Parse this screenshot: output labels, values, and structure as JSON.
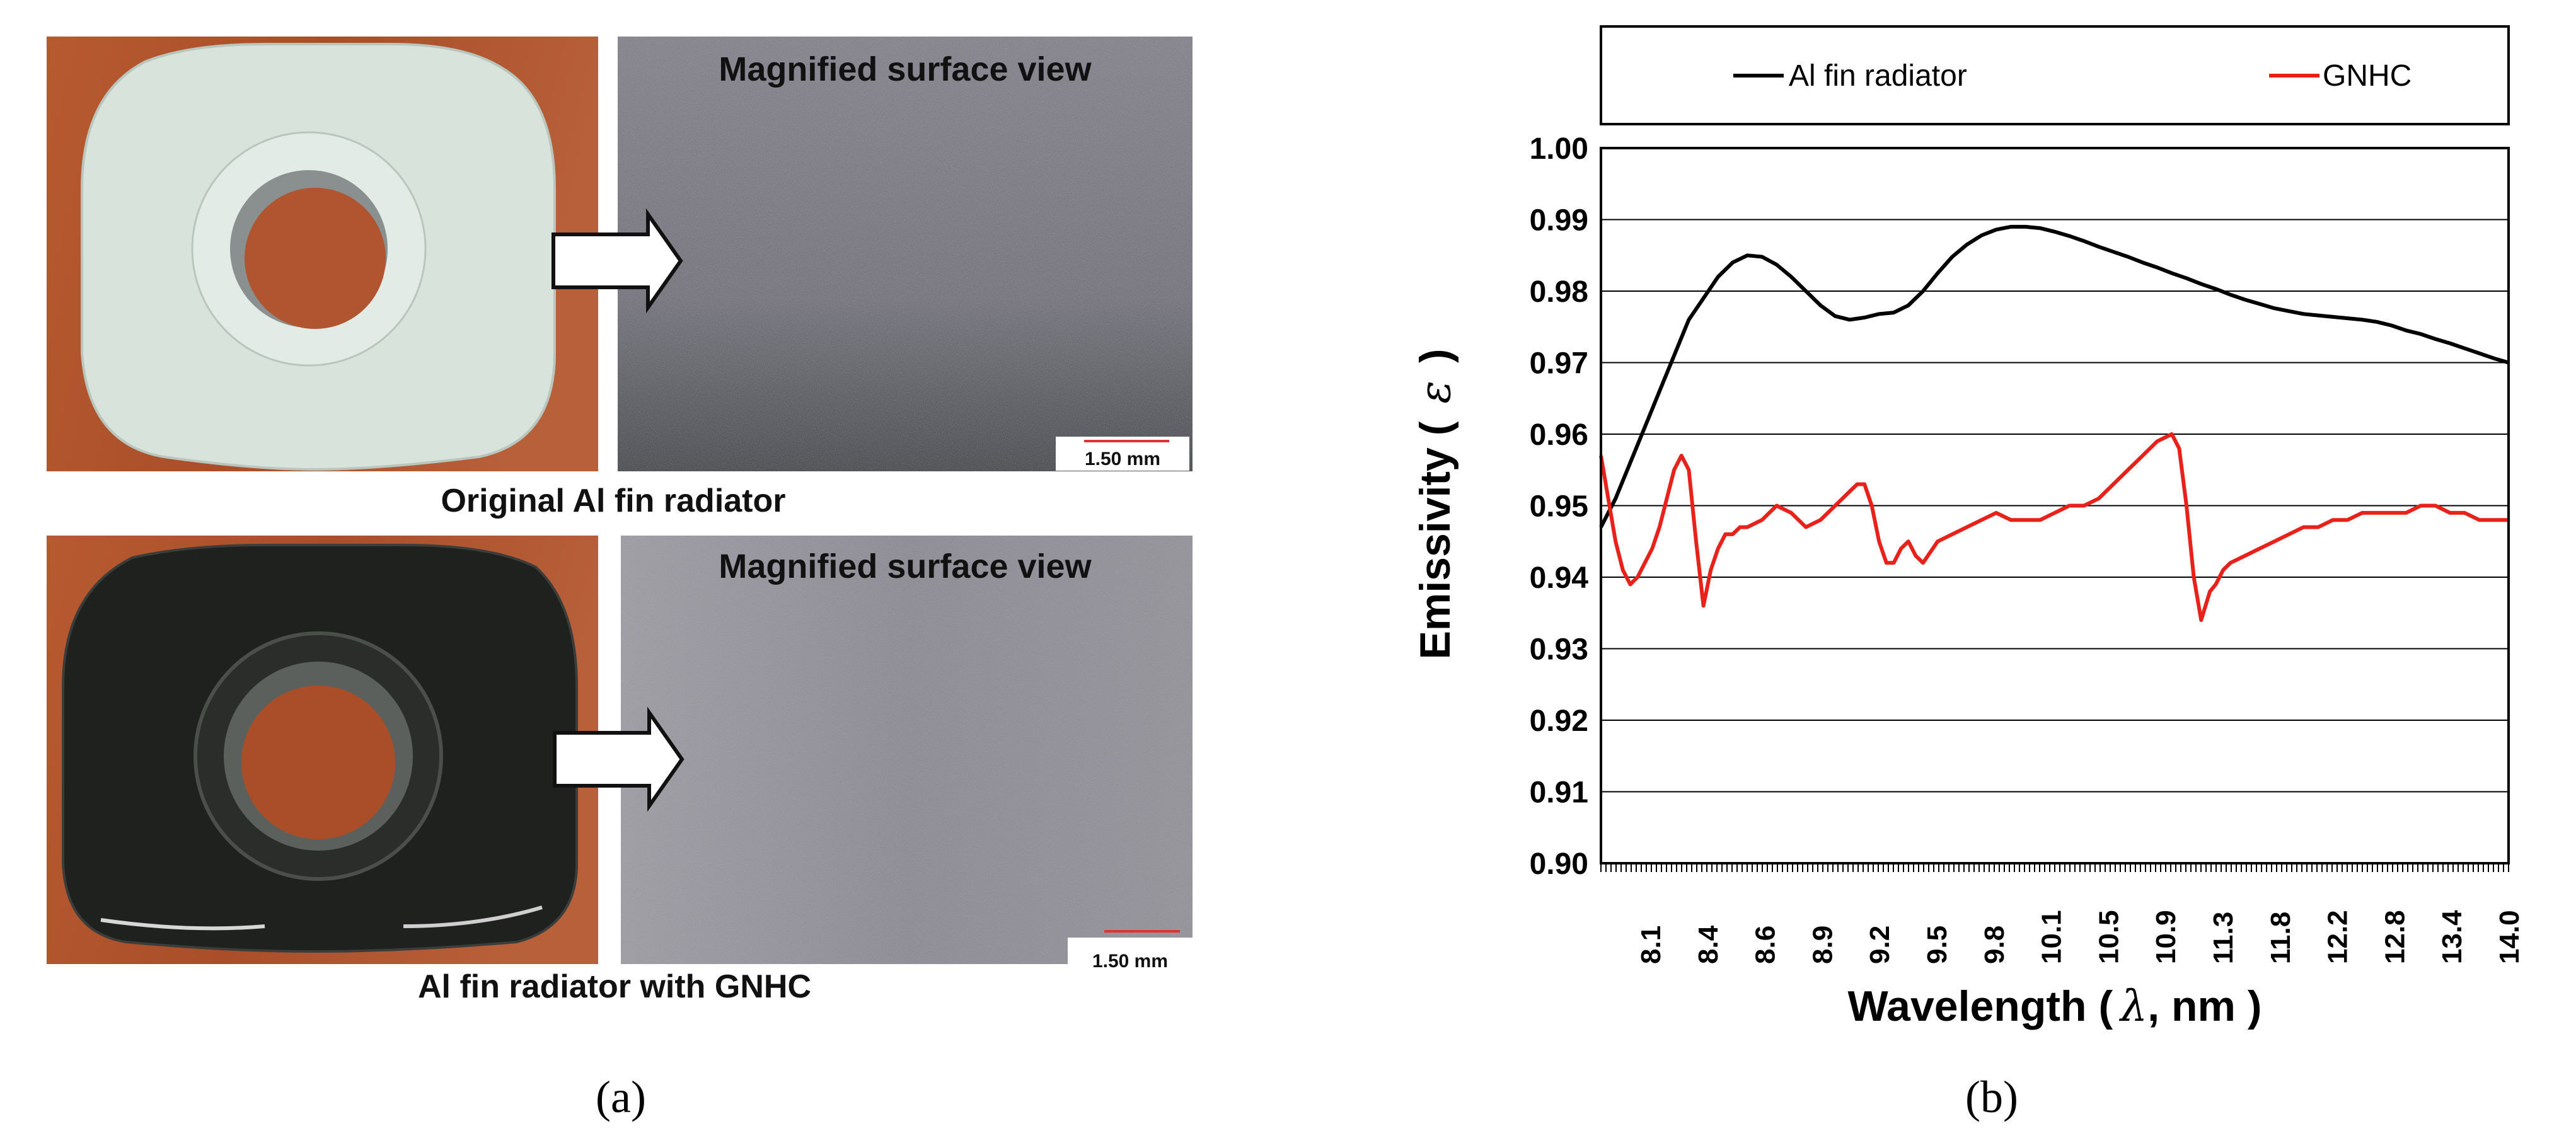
{
  "panel_a": {
    "label": "(a)",
    "top_row": {
      "magnified_title": "Magnified surface view",
      "scale_bar": "1.50 mm",
      "caption": "Original Al fin radiator"
    },
    "bottom_row": {
      "magnified_title": "Magnified surface view",
      "scale_bar": "1.50 mm",
      "caption": "Al fin radiator with GNHC"
    },
    "colors": {
      "wood": "#b4572e",
      "white_part": "#d9e3dd",
      "black_part": "#1d201d",
      "surface_top": "#6e6b78",
      "surface_bottom": "#8d8b93"
    }
  },
  "panel_b": {
    "label": "(b)"
  },
  "chart_data": {
    "type": "line",
    "ylabel_text": "Emissivity (",
    "ylabel_symbol": "ε",
    "ylabel_close": ")",
    "xlabel_text": "Wavelength (",
    "xlabel_symbol": "λ",
    "xlabel_rest": ", nm )",
    "ylim": [
      0.9,
      1.0
    ],
    "yticks": [
      "0.90",
      "0.91",
      "0.92",
      "0.93",
      "0.94",
      "0.95",
      "0.96",
      "0.97",
      "0.98",
      "0.99",
      "1.00"
    ],
    "xlim": [
      7.8,
      14.0
    ],
    "xticks": [
      "8.1",
      "8.4",
      "8.6",
      "8.9",
      "9.2",
      "9.5",
      "9.8",
      "10.1",
      "10.5",
      "10.9",
      "11.3",
      "11.8",
      "12.2",
      "12.8",
      "13.4",
      "14.0"
    ],
    "grid": true,
    "legend_position": "top (boxed, above plot)",
    "series": [
      {
        "name": "Al fin radiator",
        "color": "#000000",
        "x": [
          7.8,
          7.9,
          8.0,
          8.1,
          8.2,
          8.3,
          8.4,
          8.5,
          8.6,
          8.7,
          8.8,
          8.9,
          9.0,
          9.1,
          9.2,
          9.3,
          9.4,
          9.5,
          9.6,
          9.7,
          9.8,
          9.9,
          10.0,
          10.1,
          10.2,
          10.3,
          10.4,
          10.5,
          10.6,
          10.7,
          10.8,
          10.9,
          11.0,
          11.1,
          11.2,
          11.3,
          11.4,
          11.5,
          11.6,
          11.7,
          11.8,
          11.9,
          12.0,
          12.1,
          12.2,
          12.3,
          12.4,
          12.5,
          12.6,
          12.7,
          12.8,
          12.9,
          13.0,
          13.1,
          13.2,
          13.3,
          13.4,
          13.5,
          13.6,
          13.7,
          13.8,
          13.9,
          14.0
        ],
        "y": [
          0.947,
          0.951,
          0.956,
          0.961,
          0.966,
          0.971,
          0.976,
          0.979,
          0.982,
          0.984,
          0.985,
          0.9848,
          0.9837,
          0.982,
          0.98,
          0.978,
          0.9765,
          0.976,
          0.9763,
          0.9768,
          0.977,
          0.978,
          0.98,
          0.9825,
          0.9848,
          0.9865,
          0.9878,
          0.9886,
          0.989,
          0.989,
          0.9888,
          0.9883,
          0.9877,
          0.987,
          0.9862,
          0.9855,
          0.9848,
          0.984,
          0.9833,
          0.9825,
          0.9818,
          0.981,
          0.9803,
          0.9795,
          0.9788,
          0.9782,
          0.9776,
          0.9772,
          0.9768,
          0.9766,
          0.9764,
          0.9762,
          0.976,
          0.9757,
          0.9752,
          0.9745,
          0.974,
          0.9733,
          0.9727,
          0.972,
          0.9713,
          0.9706,
          0.97
        ]
      },
      {
        "name": "GNHC",
        "color": "#e8211a",
        "x": [
          7.8,
          7.85,
          7.9,
          7.95,
          8.0,
          8.05,
          8.1,
          8.15,
          8.2,
          8.25,
          8.3,
          8.35,
          8.4,
          8.45,
          8.5,
          8.55,
          8.6,
          8.65,
          8.7,
          8.75,
          8.8,
          8.9,
          9.0,
          9.1,
          9.2,
          9.3,
          9.4,
          9.5,
          9.55,
          9.6,
          9.65,
          9.7,
          9.75,
          9.8,
          9.85,
          9.9,
          9.95,
          10.0,
          10.1,
          10.2,
          10.3,
          10.4,
          10.5,
          10.6,
          10.7,
          10.8,
          10.9,
          11.0,
          11.1,
          11.2,
          11.3,
          11.4,
          11.5,
          11.6,
          11.7,
          11.75,
          11.8,
          11.85,
          11.9,
          11.93,
          11.96,
          12.0,
          12.05,
          12.1,
          12.2,
          12.3,
          12.4,
          12.5,
          12.6,
          12.7,
          12.8,
          12.9,
          13.0,
          13.1,
          13.2,
          13.3,
          13.4,
          13.5,
          13.6,
          13.7,
          13.8,
          13.9,
          14.0
        ],
        "y": [
          0.957,
          0.951,
          0.945,
          0.941,
          0.939,
          0.94,
          0.942,
          0.944,
          0.947,
          0.951,
          0.955,
          0.957,
          0.955,
          0.945,
          0.936,
          0.941,
          0.944,
          0.946,
          0.946,
          0.947,
          0.947,
          0.948,
          0.95,
          0.949,
          0.947,
          0.948,
          0.95,
          0.952,
          0.953,
          0.953,
          0.95,
          0.945,
          0.942,
          0.942,
          0.944,
          0.945,
          0.943,
          0.942,
          0.945,
          0.946,
          0.947,
          0.948,
          0.949,
          0.948,
          0.948,
          0.948,
          0.949,
          0.95,
          0.95,
          0.951,
          0.953,
          0.955,
          0.957,
          0.959,
          0.96,
          0.958,
          0.95,
          0.94,
          0.934,
          0.936,
          0.938,
          0.939,
          0.941,
          0.942,
          0.943,
          0.944,
          0.945,
          0.946,
          0.947,
          0.947,
          0.948,
          0.948,
          0.949,
          0.949,
          0.949,
          0.949,
          0.95,
          0.95,
          0.949,
          0.949,
          0.948,
          0.948,
          0.948
        ]
      }
    ]
  }
}
